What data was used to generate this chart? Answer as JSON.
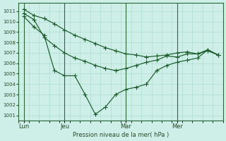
{
  "bg_color": "#ceeee8",
  "grid_color": "#a8d8cc",
  "line_color": "#1a5c2a",
  "vline_color": "#2a6a3a",
  "xlabel": "Pression niveau de la mer( hPa )",
  "ylim": [
    1000.5,
    1011.8
  ],
  "xlim": [
    0,
    20
  ],
  "yticks": [
    1001,
    1002,
    1003,
    1004,
    1005,
    1006,
    1007,
    1008,
    1009,
    1010,
    1011
  ],
  "day_positions": [
    0.5,
    4.5,
    10.5,
    15.5
  ],
  "day_labels": [
    "Lun",
    "Jeu",
    "Mar",
    "Mer"
  ],
  "vline_positions": [
    0.5,
    4.5,
    10.5,
    15.5
  ],
  "s1_x": [
    0.5,
    1.5,
    2.5,
    3.5,
    4.5,
    5.5,
    6.5,
    7.5,
    8.5,
    9.5,
    10.5,
    11.5,
    12.5,
    13.5,
    14.5,
    15.5,
    16.5,
    17.5,
    18.5,
    19.5
  ],
  "s1_y": [
    1011.2,
    1010.6,
    1010.3,
    1009.8,
    1009.2,
    1008.7,
    1008.3,
    1007.9,
    1007.5,
    1007.2,
    1006.9,
    1006.8,
    1006.6,
    1006.7,
    1006.8,
    1007.0,
    1007.1,
    1006.9,
    1007.2,
    1006.8
  ],
  "s2_x": [
    0.5,
    1.5,
    2.5,
    3.5,
    4.5,
    5.5,
    6.5,
    7.5,
    8.5,
    9.5,
    10.5,
    11.5,
    12.5,
    13.5,
    14.5,
    15.5,
    16.5,
    17.5,
    18.5,
    19.5
  ],
  "s2_y": [
    1010.8,
    1010.2,
    1008.5,
    1007.7,
    1007.0,
    1006.5,
    1006.2,
    1005.8,
    1005.5,
    1005.3,
    1005.5,
    1005.8,
    1006.1,
    1006.3,
    1006.7,
    1006.6,
    1006.9,
    1006.9,
    1007.3,
    1006.8
  ],
  "s3_x": [
    0.5,
    1.5,
    2.5,
    3.5,
    4.5,
    5.5,
    6.5,
    7.5,
    8.5,
    9.5,
    10.5,
    11.5,
    12.5,
    13.5,
    14.5,
    15.5,
    16.5,
    17.5,
    18.5,
    19.5
  ],
  "s3_y": [
    1010.5,
    1009.5,
    1008.7,
    1005.3,
    1004.8,
    1004.8,
    1003.0,
    1001.1,
    1001.8,
    1003.0,
    1003.5,
    1003.7,
    1004.0,
    1005.3,
    1005.8,
    1006.1,
    1006.3,
    1006.5,
    1007.3,
    1006.8
  ]
}
